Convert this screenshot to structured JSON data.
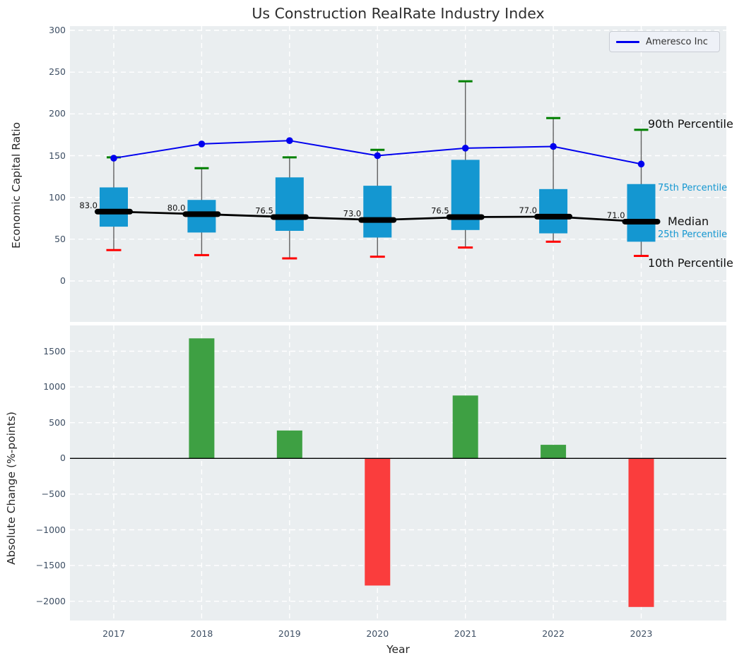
{
  "title": "Us Construction RealRate Industry Index",
  "legend": {
    "entries": [
      "Ameresco Inc"
    ],
    "position": "upper right"
  },
  "colors": {
    "plot_background": "#eaeef0",
    "grid": "#ffffff",
    "line_blue": "#0000ee",
    "box_fill": "#1497d1",
    "median_black": "#000000",
    "whisker_gray": "#606060",
    "cap_green": "#008000",
    "cap_red": "#ff0000",
    "bar_positive": "#3ea043",
    "bar_negative": "#fa3d3d",
    "tick_label": "#3d4e63"
  },
  "chart_data": [
    {
      "type": "boxplot+line",
      "title": "Us Construction RealRate Industry Index",
      "xlabel": "",
      "ylabel": "Economic Capital Ratio",
      "categories": [
        "2017",
        "2018",
        "2019",
        "2020",
        "2021",
        "2022",
        "2023"
      ],
      "yticks": [
        0,
        50,
        100,
        150,
        200,
        250,
        300
      ],
      "ylim": [
        -49,
        305
      ],
      "grid": true,
      "legend_entries": [
        "Ameresco Inc"
      ],
      "series": [
        {
          "name": "Ameresco Inc",
          "role": "line",
          "values": [
            147,
            164,
            168,
            150,
            159,
            161,
            140
          ]
        },
        {
          "name": "90th Percentile",
          "role": "whisker-high",
          "values": [
            148,
            135,
            148,
            157,
            239,
            195,
            181
          ]
        },
        {
          "name": "75th Percentile",
          "role": "box-top",
          "values": [
            112,
            97,
            124,
            114,
            145,
            110,
            116
          ]
        },
        {
          "name": "Median",
          "role": "median",
          "values": [
            83,
            80,
            76.5,
            73,
            76.5,
            77,
            71
          ]
        },
        {
          "name": "25th Percentile",
          "role": "box-bottom",
          "values": [
            65,
            58,
            60,
            52,
            61,
            57,
            47
          ]
        },
        {
          "name": "10th Percentile",
          "role": "whisker-low",
          "values": [
            37,
            31,
            27,
            29,
            40,
            47,
            30
          ]
        }
      ],
      "median_labels": [
        "83.0",
        "80.0",
        "76.5",
        "73.0",
        "76.5",
        "77.0",
        "71.0"
      ],
      "annotations": [
        "90th Percentile",
        "75th Percentile",
        "Median",
        "25th Percentile",
        "10th Percentile"
      ]
    },
    {
      "type": "bar",
      "title": "",
      "xlabel": "Year",
      "ylabel": "Absolute Change (%-points)",
      "categories": [
        "2017",
        "2018",
        "2019",
        "2020",
        "2021",
        "2022",
        "2023"
      ],
      "values": [
        null,
        1680,
        390,
        -1780,
        880,
        190,
        -2080
      ],
      "yticks": [
        1500,
        1000,
        500,
        0,
        -500,
        -1000,
        -1500,
        -2000
      ],
      "ylim": [
        -2270,
        1860
      ],
      "grid": true
    }
  ]
}
